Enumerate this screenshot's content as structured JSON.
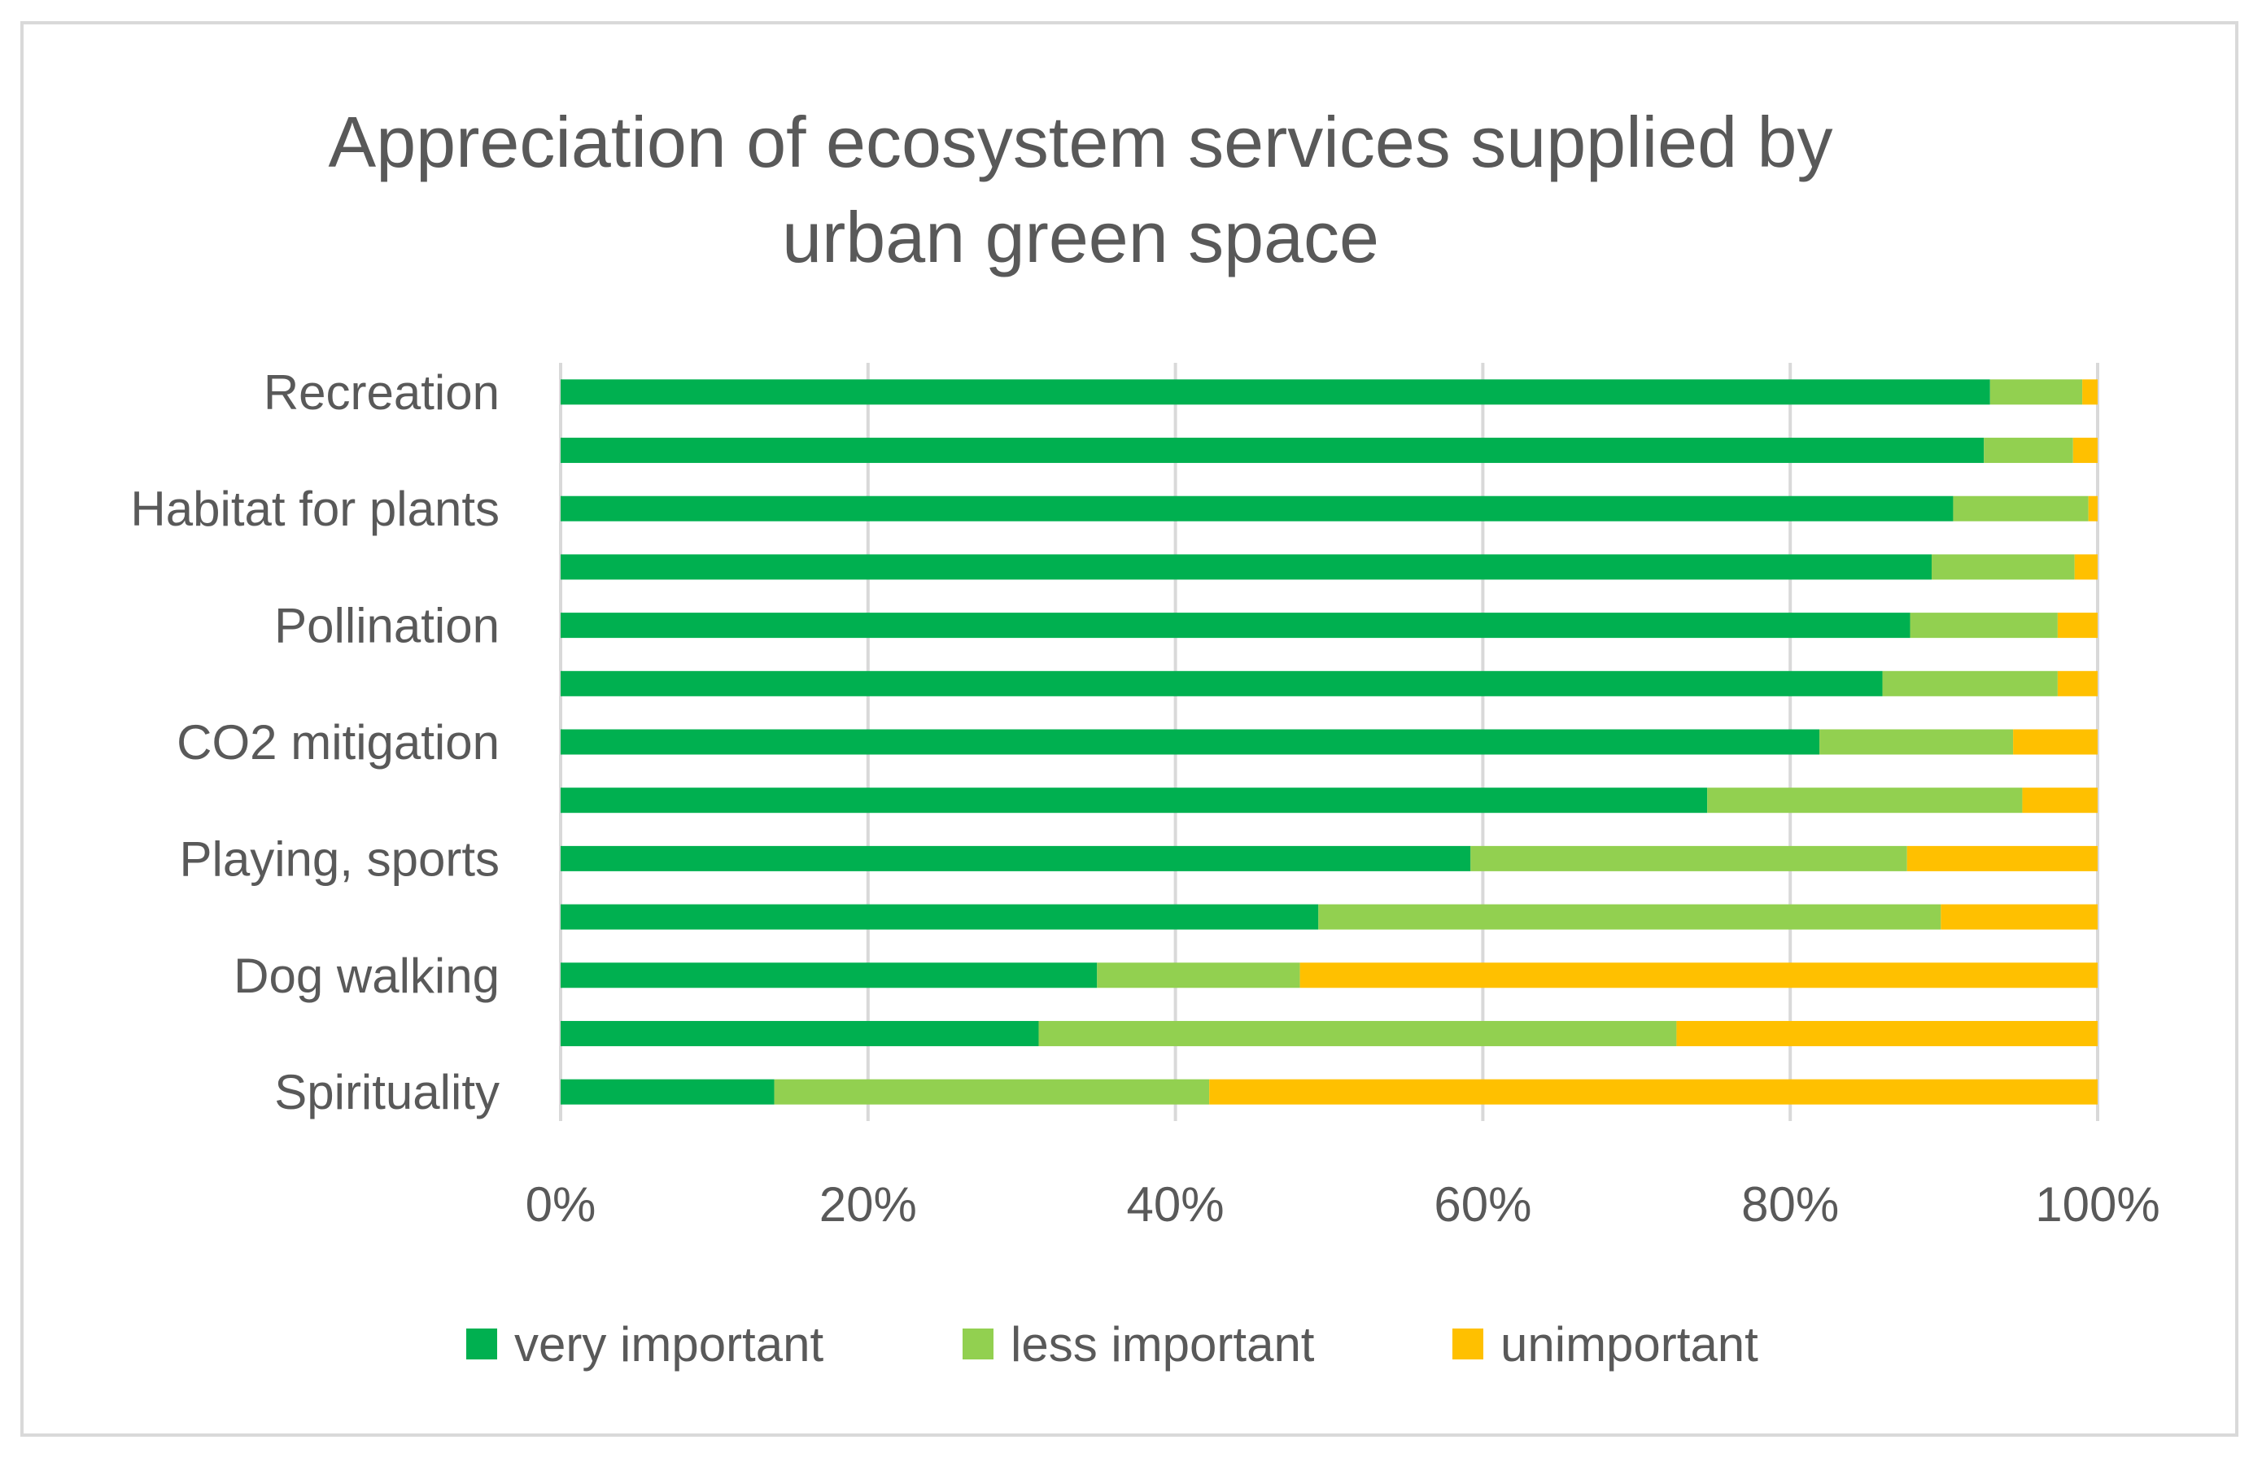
{
  "chart_data": {
    "type": "bar",
    "orientation": "horizontal",
    "stacked": "percent",
    "title": "Appreciation of ecosystem services supplied by urban green space",
    "title_lines": [
      "Appreciation of ecosystem services supplied by",
      "urban green space"
    ],
    "categories": [
      "Recreation",
      "",
      "Habitat for plants",
      "",
      "Pollination",
      "",
      "CO2 mitigation",
      "",
      "Playing, sports",
      "",
      "Dog walking",
      "",
      "Spirituality"
    ],
    "series": [
      {
        "name": "very important",
        "color": "#00b050",
        "values": [
          93,
          92.6,
          90.6,
          89.2,
          87.8,
          86,
          81.9,
          74.6,
          59.2,
          49.3,
          34.9,
          31.1,
          13.9
        ]
      },
      {
        "name": "less important",
        "color": "#92d050",
        "values": [
          6,
          5.8,
          8.8,
          9.3,
          9.6,
          11.4,
          12.6,
          20.5,
          28.4,
          40.5,
          13.2,
          41.5,
          28.3
        ]
      },
      {
        "name": "unimportant",
        "color": "#ffc000",
        "values": [
          1,
          1.6,
          0.6,
          1.5,
          2.6,
          2.6,
          5.5,
          4.9,
          12.4,
          10.2,
          51.9,
          27.4,
          57.8
        ]
      }
    ],
    "x_ticks": [
      "0%",
      "20%",
      "40%",
      "60%",
      "80%",
      "100%"
    ],
    "xlim": [
      0,
      100
    ],
    "grid": true,
    "legend_position": "bottom"
  }
}
